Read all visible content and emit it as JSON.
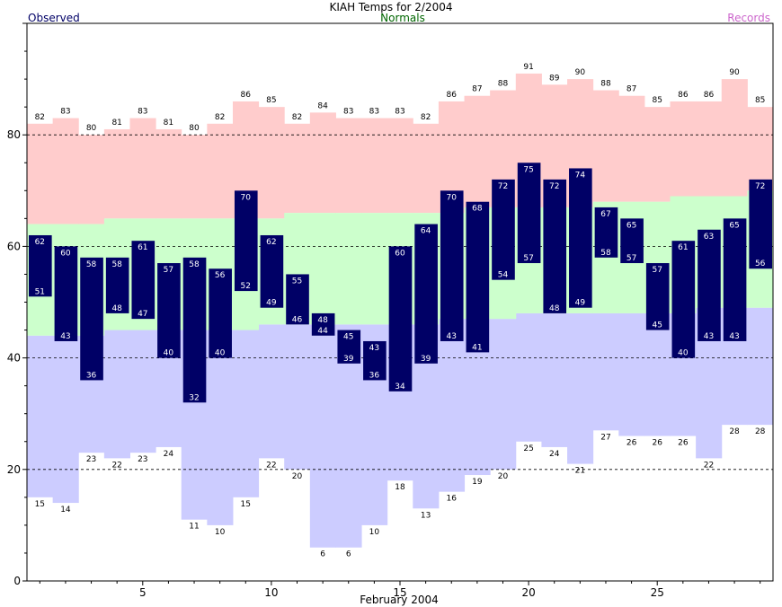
{
  "chart_data": {
    "type": "bar",
    "title": "KIAH Temps for 2/2004",
    "legend": {
      "observed": "Observed",
      "normals": "Normals",
      "records": "Records"
    },
    "xlabel": "February 2004",
    "xticks": [
      5,
      10,
      15,
      20,
      25
    ],
    "yticks": [
      0,
      20,
      40,
      60,
      80
    ],
    "xlim": [
      0.5,
      29.5
    ],
    "ylim": [
      0,
      100
    ],
    "days": [
      1,
      2,
      3,
      4,
      5,
      6,
      7,
      8,
      9,
      10,
      11,
      12,
      13,
      14,
      15,
      16,
      17,
      18,
      19,
      20,
      21,
      22,
      23,
      24,
      25,
      26,
      27,
      28,
      29
    ],
    "record_high": [
      82,
      83,
      80,
      81,
      83,
      81,
      80,
      82,
      86,
      85,
      82,
      84,
      83,
      83,
      83,
      82,
      86,
      87,
      88,
      91,
      89,
      90,
      88,
      87,
      85,
      86,
      86,
      90,
      85
    ],
    "record_low": [
      15,
      14,
      23,
      22,
      23,
      24,
      11,
      10,
      15,
      22,
      20,
      6,
      6,
      10,
      18,
      13,
      16,
      19,
      20,
      25,
      24,
      21,
      27,
      26,
      26,
      26,
      22,
      28,
      28
    ],
    "normal_high": [
      64,
      64,
      64,
      65,
      65,
      65,
      65,
      65,
      65,
      65,
      66,
      66,
      66,
      66,
      66,
      66,
      66,
      67,
      67,
      67,
      67,
      67,
      68,
      68,
      68,
      69,
      69,
      69,
      70
    ],
    "normal_low": [
      44,
      44,
      44,
      45,
      45,
      45,
      45,
      45,
      45,
      46,
      46,
      46,
      46,
      46,
      46,
      46,
      47,
      47,
      47,
      48,
      48,
      48,
      48,
      48,
      48,
      48,
      49,
      49,
      49
    ],
    "observed_high": [
      62,
      60,
      58,
      58,
      61,
      57,
      58,
      56,
      70,
      62,
      55,
      48,
      45,
      43,
      60,
      64,
      70,
      68,
      72,
      75,
      72,
      74,
      67,
      65,
      57,
      61,
      63,
      65,
      72
    ],
    "observed_low": [
      51,
      43,
      36,
      48,
      47,
      40,
      32,
      40,
      52,
      49,
      46,
      44,
      39,
      36,
      34,
      39,
      43,
      41,
      54,
      57,
      48,
      49,
      58,
      57,
      45,
      40,
      43,
      43,
      56
    ],
    "colors": {
      "records_fill": "#ffcccc",
      "normals_fill": "#ccffcc",
      "below_normal_fill": "#ccccff",
      "observed_bar": "#000066",
      "observed_text": "#000066",
      "normals_text": "#006600",
      "records_text": "#cc66cc"
    },
    "grid": "dashed at 20, 40, 60, 80"
  }
}
